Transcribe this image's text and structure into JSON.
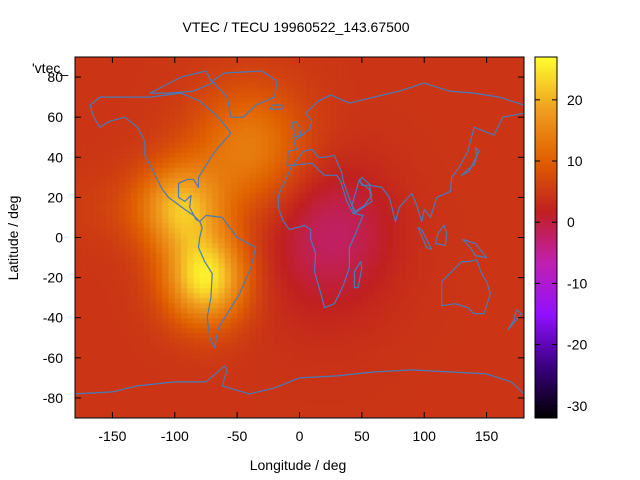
{
  "chart_data": {
    "type": "heatmap",
    "title": "VTEC / TECU 19960522_143.67500",
    "xlabel": "Longitude / deg",
    "ylabel": "Latitude / deg",
    "xlim": [
      -180,
      180
    ],
    "ylim": [
      -90,
      90
    ],
    "x_ticks": [
      -150,
      -100,
      -50,
      0,
      50,
      100,
      150
    ],
    "y_ticks": [
      -80,
      -60,
      -40,
      -20,
      0,
      20,
      40,
      60,
      80
    ],
    "colorbar": {
      "range": [
        -32,
        27
      ],
      "ticks": [
        20,
        10,
        0,
        -10,
        -20,
        -30
      ],
      "colors": [
        "#000000",
        "#3a0080",
        "#9010ff",
        "#c020b0",
        "#c02020",
        "#e06000",
        "#f0a020",
        "#ffff30"
      ]
    },
    "legend_key": "'vtec_",
    "grid": false,
    "field_peaks": [
      {
        "lon": -75,
        "lat": -20,
        "vtec": 25
      },
      {
        "lon": -95,
        "lat": 15,
        "vtec": 19
      },
      {
        "lon": -40,
        "lat": 45,
        "vtec": 14
      },
      {
        "lon": 30,
        "lat": 5,
        "vtec": 1
      }
    ],
    "coastline_color": "#4a7ab8"
  }
}
